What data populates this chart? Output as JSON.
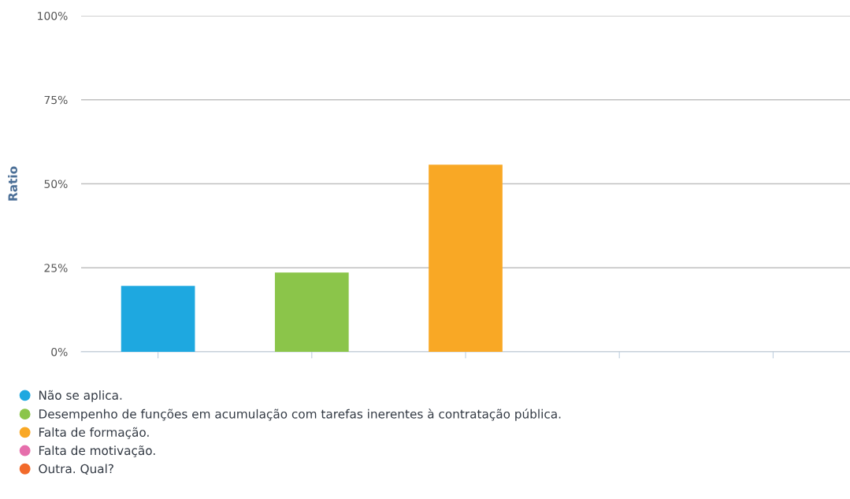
{
  "chart_data": {
    "type": "bar",
    "ylabel": "Ratio",
    "categories": [
      null,
      null,
      null,
      null,
      null
    ],
    "series": [
      {
        "name": "Não se aplica.",
        "color": "#1ea8e0",
        "values": [
          19.6,
          null,
          null,
          null,
          null
        ]
      },
      {
        "name": "Desempenho de funções em acumulação com tarefas inerentes à contratação pública.",
        "color": "#8bc54a",
        "values": [
          null,
          23.6,
          null,
          null,
          null
        ]
      },
      {
        "name": "Falta de formação.",
        "color": "#f9a825",
        "values": [
          null,
          null,
          55.7,
          null,
          null
        ]
      },
      {
        "name": "Falta de motivação.",
        "color": "#e66fac",
        "values": [
          null,
          null,
          null,
          0,
          null
        ]
      },
      {
        "name": "Outra. Qual?",
        "color": "#f26a2b",
        "values": [
          null,
          null,
          null,
          null,
          0
        ]
      }
    ],
    "ylim": [
      0,
      100
    ],
    "yticks": [
      {
        "value": 0,
        "label": "0%"
      },
      {
        "value": 25,
        "label": "25%"
      },
      {
        "value": 50,
        "label": "50%"
      },
      {
        "value": 75,
        "label": "75%"
      },
      {
        "value": 100,
        "label": "100%"
      }
    ],
    "grid": "y",
    "legend": "bottom",
    "tick_labels": "y"
  }
}
